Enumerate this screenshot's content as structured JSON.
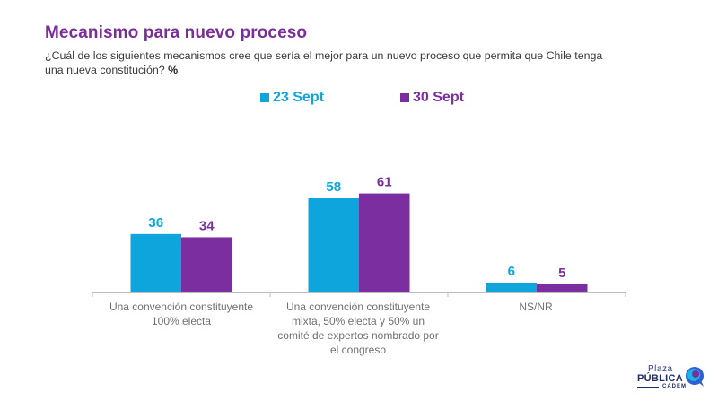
{
  "header": {
    "title": "Mecanismo para nuevo proceso",
    "subtitle": "¿Cuál de los siguientes mecanismos cree que sería el mejor para un nuevo proceso que permita que Chile tenga una nueva constitución?",
    "subtitle_unit": "%"
  },
  "legend": [
    {
      "label": "23 Sept",
      "color": "#0ea5dd"
    },
    {
      "label": "30 Sept",
      "color": "#7b2ea0"
    }
  ],
  "chart_data": {
    "type": "bar",
    "title": "Mecanismo para nuevo proceso",
    "xlabel": "",
    "ylabel": "%",
    "ylim": [
      0,
      100
    ],
    "grid": false,
    "legend_position": "top",
    "categories": [
      "Una convención constituyente 100% electa",
      "Una convención constituyente mixta, 50% electa y 50% un comité de expertos nombrado por el congreso",
      "NS/NR"
    ],
    "series": [
      {
        "name": "23 Sept",
        "color": "#0ea5dd",
        "values": [
          36,
          58,
          6
        ]
      },
      {
        "name": "30 Sept",
        "color": "#7b2ea0",
        "values": [
          34,
          61,
          5
        ]
      }
    ]
  },
  "category_labels": [
    "Una convención constituyente 100% electa",
    "Una convención constituyente mixta, 50% electa y 50% un comité de expertos nombrado por el congreso",
    "NS/NR"
  ],
  "logo": {
    "line1": "Plaza",
    "line2": "PÚBLICA",
    "line3": "CADEM"
  }
}
